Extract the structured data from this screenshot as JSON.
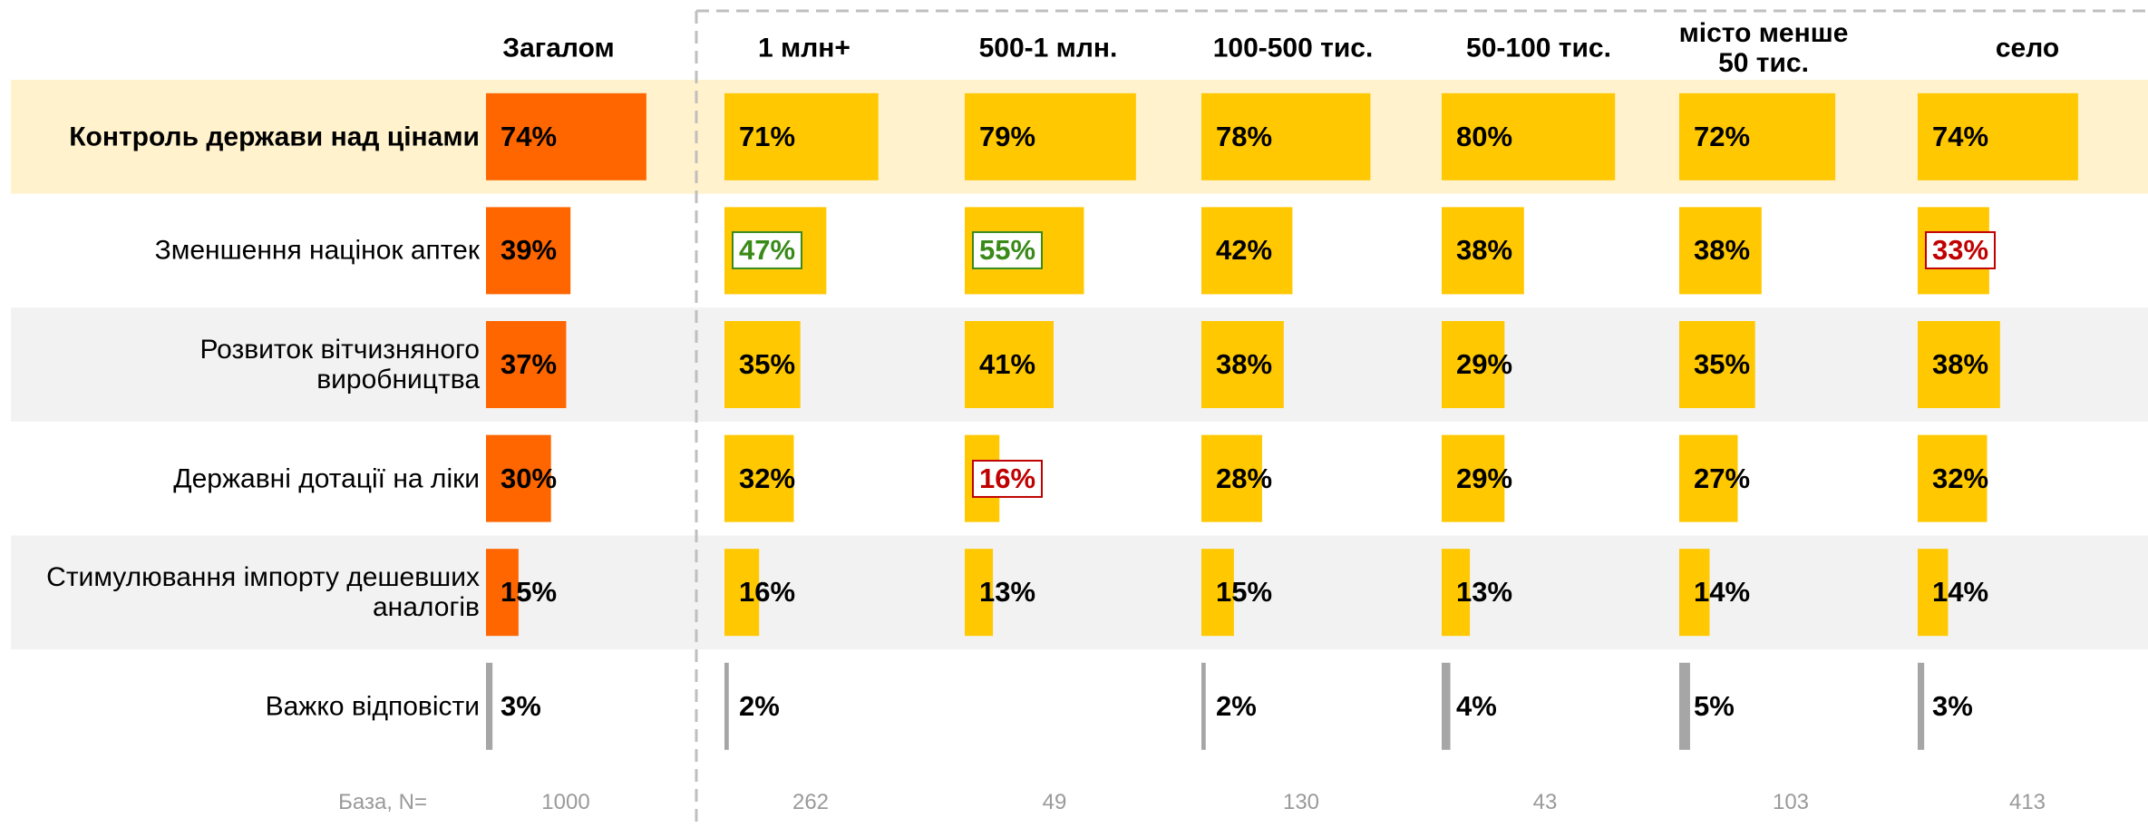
{
  "chart_data": {
    "type": "bar",
    "categories": [
      "Контроль держави над цінами",
      "Зменшення націнок аптек",
      "Розвиток вітчизняного\nвиробництва",
      "Державні дотації на ліки",
      "Стимулювання імпорту дешевших\nаналогів",
      "Важко відповісти"
    ],
    "category_colors": [
      null,
      null,
      null,
      null,
      null,
      "#a6a6a6"
    ],
    "xlim": [
      0,
      100
    ],
    "base_label": "База, N=",
    "series": [
      {
        "name": "Загалом",
        "color": "#ff6600",
        "values": [
          74,
          39,
          37,
          30,
          15,
          3
        ],
        "value_labels": [
          "74%",
          "39%",
          "37%",
          "30%",
          "15%",
          "3%"
        ],
        "outline": [
          null,
          null,
          null,
          null,
          null,
          null
        ],
        "base": 1000
      },
      {
        "name": "1 млн+",
        "color": "#ffc800",
        "values": [
          71,
          47,
          35,
          32,
          16,
          2
        ],
        "value_labels": [
          "71%",
          "47%",
          "35%",
          "32%",
          "16%",
          "2%"
        ],
        "outline": [
          null,
          "#3a8a1a",
          null,
          null,
          null,
          null
        ],
        "base": 262
      },
      {
        "name": "500-1 млн.",
        "color": "#ffc800",
        "values": [
          79,
          55,
          41,
          16,
          13,
          null
        ],
        "value_labels": [
          "79%",
          "55%",
          "41%",
          "16%",
          "13%",
          null
        ],
        "outline": [
          null,
          "#3a8a1a",
          null,
          "#c00000",
          null,
          null
        ],
        "base": 49
      },
      {
        "name": "100-500 тис.",
        "color": "#ffc800",
        "values": [
          78,
          42,
          38,
          28,
          15,
          2
        ],
        "value_labels": [
          "78%",
          "42%",
          "38%",
          "28%",
          "15%",
          "2%"
        ],
        "outline": [
          null,
          null,
          null,
          null,
          null,
          null
        ],
        "base": 130
      },
      {
        "name": "50-100 тис.",
        "color": "#ffc800",
        "values": [
          80,
          38,
          29,
          29,
          13,
          4
        ],
        "value_labels": [
          "80%",
          "38%",
          "29%",
          "29%",
          "13%",
          "4%"
        ],
        "outline": [
          null,
          null,
          null,
          null,
          null,
          null
        ],
        "base": 43
      },
      {
        "name": "місто менше\n50 тис.",
        "color": "#ffc800",
        "values": [
          72,
          38,
          35,
          27,
          14,
          5
        ],
        "value_labels": [
          "72%",
          "38%",
          "35%",
          "27%",
          "14%",
          "5%"
        ],
        "outline": [
          null,
          null,
          null,
          null,
          null,
          null
        ],
        "base": 103
      },
      {
        "name": "село",
        "color": "#ffc800",
        "values": [
          74,
          33,
          38,
          32,
          14,
          3
        ],
        "value_labels": [
          "74%",
          "33%",
          "38%",
          "32%",
          "14%",
          "3%"
        ],
        "outline": [
          null,
          "#c00000",
          null,
          null,
          null,
          null
        ],
        "base": 413
      }
    ]
  }
}
